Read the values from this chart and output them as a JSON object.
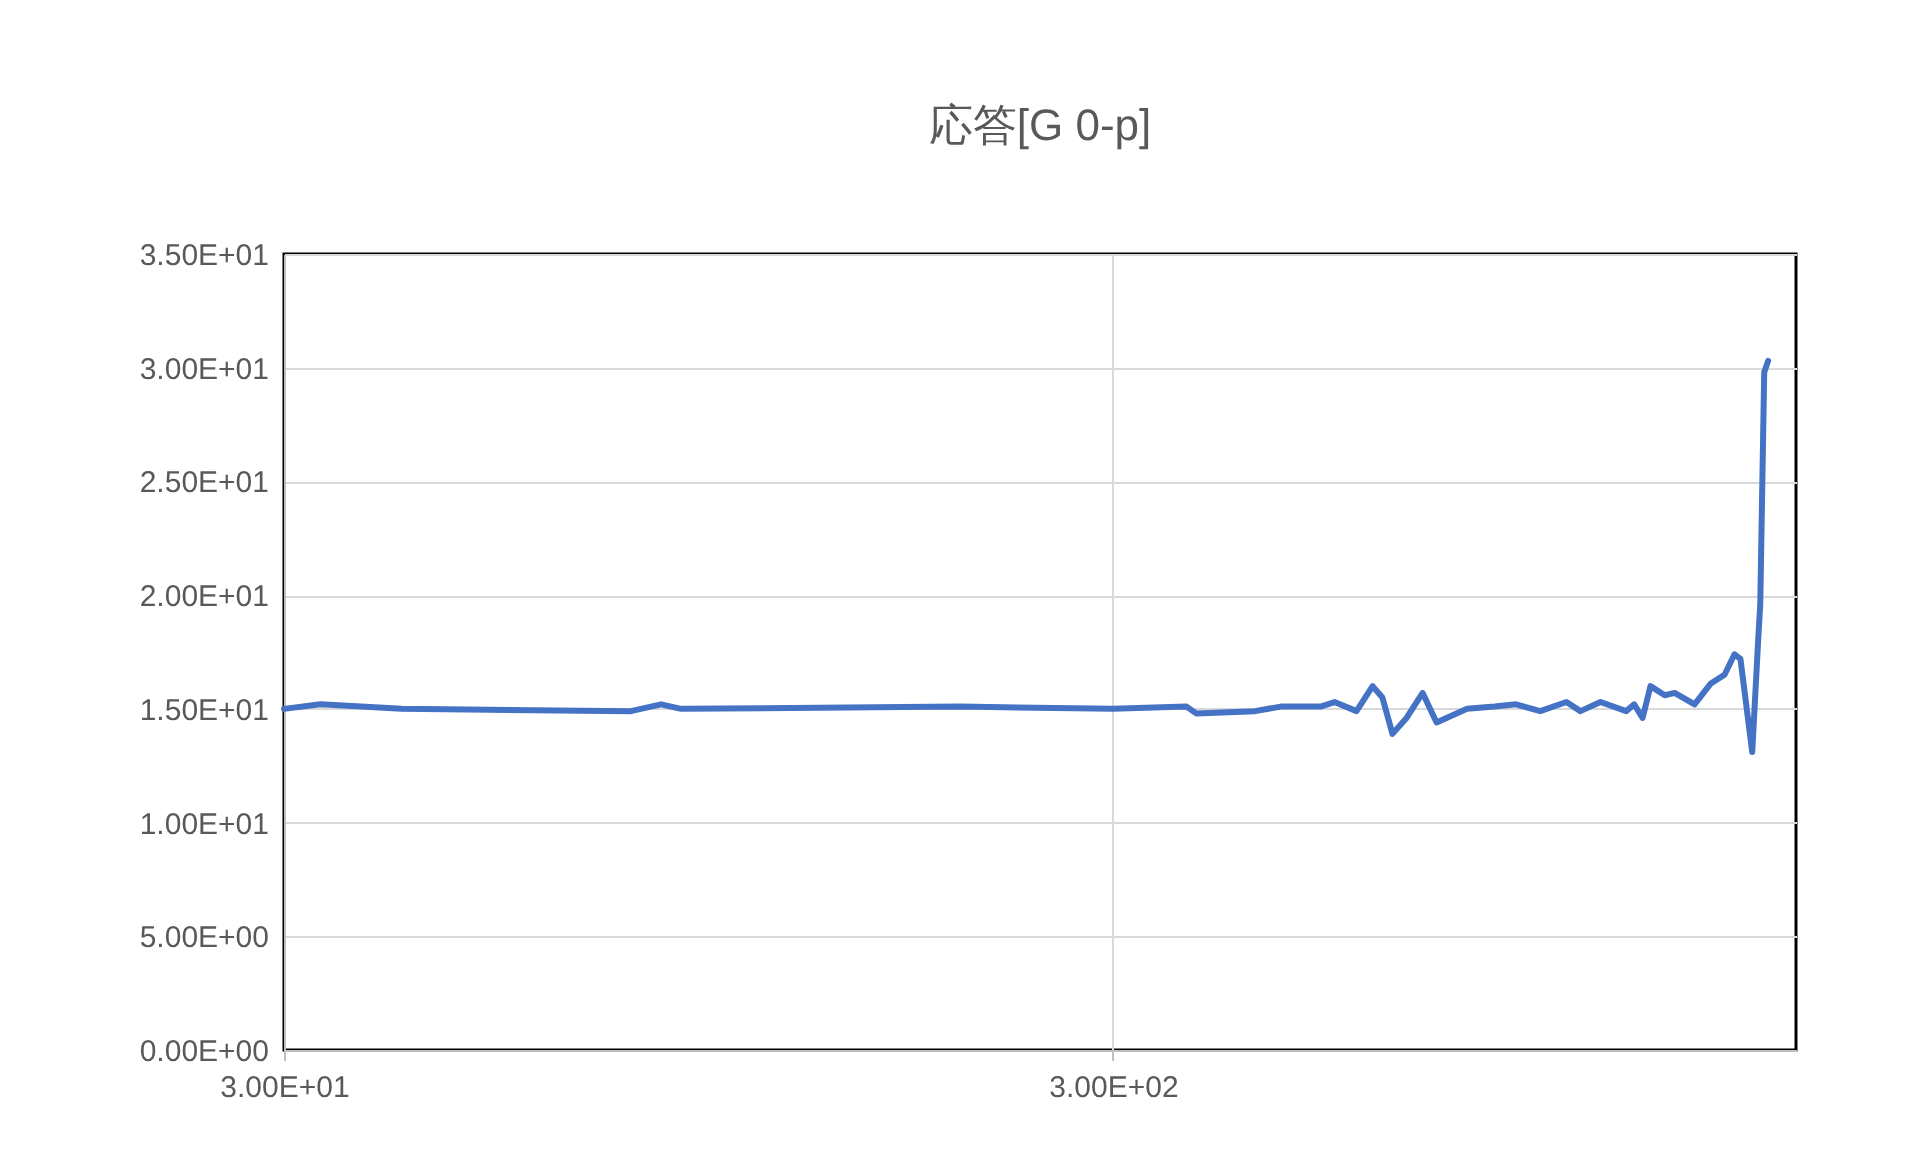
{
  "chart_data": {
    "type": "line",
    "title": "応答[G 0-p]",
    "log": "x",
    "grid": true,
    "xlim": [
      30,
      2000
    ],
    "ylim": [
      0,
      35
    ],
    "xticks": [
      {
        "value": 30,
        "label": "3.00E+01"
      },
      {
        "value": 300,
        "label": "3.00E+02"
      }
    ],
    "yticks": [
      {
        "value": 0,
        "label": "0.00E+00"
      },
      {
        "value": 5,
        "label": "5.00E+00"
      },
      {
        "value": 10,
        "label": "1.00E+01"
      },
      {
        "value": 15,
        "label": "1.50E+01"
      },
      {
        "value": 20,
        "label": "2.00E+01"
      },
      {
        "value": 25,
        "label": "2.50E+01"
      },
      {
        "value": 30,
        "label": "3.00E+01"
      },
      {
        "value": 35,
        "label": "3.50E+01"
      }
    ],
    "x": [
      30,
      33.2,
      41.6,
      78.6,
      85.5,
      90.4,
      196,
      300,
      368,
      378,
      445,
      478,
      534,
      555,
      590,
      617,
      634,
      652,
      678,
      709,
      737,
      802,
      866,
      919,
      983,
      1057,
      1099,
      1162,
      1248,
      1276,
      1306,
      1335,
      1389,
      1428,
      1509,
      1577,
      1640,
      1686,
      1714,
      1771,
      1801,
      1811,
      1831,
      1851
    ],
    "series": [
      {
        "color": "#4472c4",
        "values": [
          15.0,
          15.2,
          15.0,
          14.9,
          15.2,
          15.0,
          15.1,
          15.0,
          15.1,
          14.8,
          14.9,
          15.1,
          15.1,
          15.3,
          14.9,
          16.0,
          15.5,
          13.9,
          14.6,
          15.7,
          14.4,
          15.0,
          15.1,
          15.2,
          14.9,
          15.3,
          14.9,
          15.3,
          14.9,
          15.2,
          14.6,
          16.0,
          15.6,
          15.7,
          15.2,
          16.1,
          16.5,
          17.4,
          17.2,
          13.1,
          18.1,
          19.6,
          29.8,
          30.3
        ]
      }
    ]
  }
}
